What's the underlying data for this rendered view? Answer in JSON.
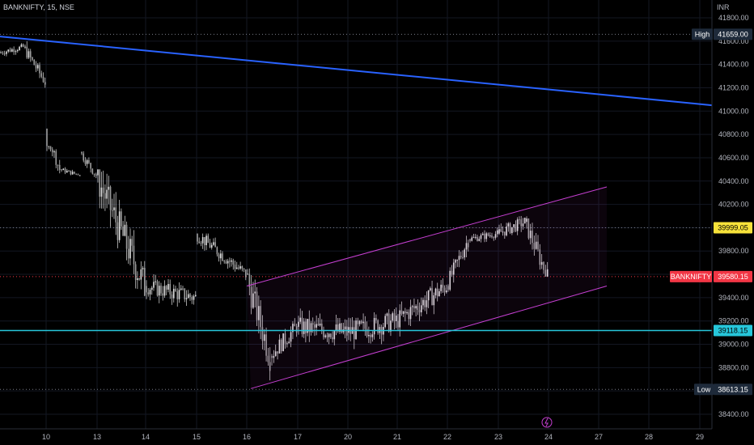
{
  "header": {
    "symbol_line": "BANKNIFTY, 15, NSE"
  },
  "currency": "INR",
  "colors": {
    "background": "#000000",
    "grid": "#131722",
    "trendline": "#2962ff",
    "channel": "#c53fd1",
    "support": "#26c6da",
    "candle": "#c7c7c7",
    "high_tag": "#1e2a3a",
    "close_tag": "#f23645",
    "yellow_tag": "#f7e23a",
    "low_tag": "#1e2a3a"
  },
  "tags": {
    "high_label": "High",
    "high_value": "41659.00",
    "yellow_value": "39999.05",
    "close_label": "BANKNIFTY",
    "close_value": "39580.15",
    "support_value": "39118.15",
    "low_label": "Low",
    "low_value": "38613.15"
  },
  "chart_data": {
    "type": "candlestick",
    "title": "BANKNIFTY, 15, NSE",
    "ylabel": "INR",
    "ylim": [
      38350,
      41900
    ],
    "y_ticks": [
      38400,
      38600,
      38800,
      39000,
      39200,
      39400,
      39600,
      39800,
      40000,
      40200,
      40400,
      40600,
      40800,
      41000,
      41200,
      41400,
      41600,
      41800
    ],
    "x_ticks": [
      "10",
      "13",
      "14",
      "15",
      "16",
      "17",
      "20",
      "21",
      "22",
      "23",
      "24",
      "27",
      "28",
      "29"
    ],
    "session_values": [
      [
        41500,
        41659,
        41450,
        41550
      ],
      [
        41550,
        41600,
        41200,
        41250
      ],
      [
        40850,
        40700,
        40300,
        40500
      ],
      [
        40500,
        40600,
        40450,
        40450
      ],
      [
        40650,
        40700,
        40400,
        40450
      ],
      [
        40450,
        40500,
        39300,
        39500
      ],
      [
        39500,
        39650,
        39100,
        39400
      ],
      [
        39950,
        39950,
        39500,
        39600
      ],
      [
        39600,
        39650,
        38613,
        38900
      ],
      [
        38900,
        39300,
        38750,
        39150
      ],
      [
        39150,
        39600,
        38900,
        39100
      ],
      [
        39100,
        39650,
        38950,
        39200
      ],
      [
        39200,
        39650,
        39000,
        39500
      ],
      [
        39500,
        39950,
        39400,
        39900
      ],
      [
        39900,
        40050,
        39800,
        39950
      ],
      [
        39950,
        40150,
        39750,
        40050
      ],
      [
        40050,
        40200,
        39580,
        39580
      ]
    ],
    "lines": [
      {
        "label": "trendline",
        "from": [
          "9",
          41640
        ],
        "to": [
          "29+",
          41050
        ]
      },
      {
        "label": "channel-upper",
        "from": [
          "16",
          39500
        ],
        "to": [
          "24+",
          40350
        ]
      },
      {
        "label": "channel-lower",
        "from": [
          "16",
          38620
        ],
        "to": [
          "24+",
          39500
        ]
      },
      {
        "label": "support",
        "value": 39118.15
      },
      {
        "label": "high-marker",
        "value": 41659.0
      },
      {
        "label": "low-marker",
        "value": 38613.15
      },
      {
        "label": "yellow-level",
        "value": 39999.05
      },
      {
        "label": "close-level",
        "value": 39580.15
      }
    ]
  }
}
